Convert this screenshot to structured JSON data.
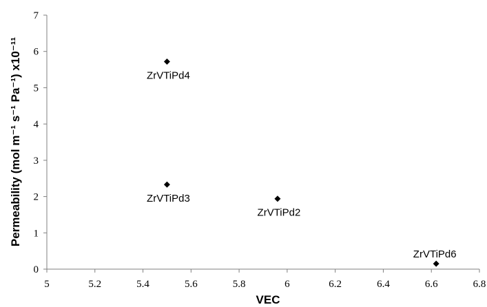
{
  "chart_data": {
    "type": "scatter",
    "title": "",
    "xlabel": "VEC",
    "ylabel": "Permeability (mol m⁻¹ s⁻¹ Pa⁻¹) x10⁻¹¹",
    "xlim": [
      5,
      6.8
    ],
    "ylim": [
      0,
      7
    ],
    "x_ticks": [
      "5",
      "5.2",
      "5.4",
      "5.6",
      "5.8",
      "6",
      "6.2",
      "6.4",
      "6.6",
      "6.8"
    ],
    "y_ticks": [
      "0",
      "1",
      "2",
      "3",
      "4",
      "5",
      "6",
      "7"
    ],
    "grid": false,
    "marker": "diamond",
    "marker_color": "#000000",
    "points": [
      {
        "label": "ZrVTiPd4",
        "x": 5.5,
        "y": 5.72
      },
      {
        "label": "ZrVTiPd3",
        "x": 5.5,
        "y": 2.33
      },
      {
        "label": "ZrVTiPd2",
        "x": 5.96,
        "y": 1.94
      },
      {
        "label": "ZrVTiPd6",
        "x": 6.62,
        "y": 0.15
      }
    ]
  }
}
